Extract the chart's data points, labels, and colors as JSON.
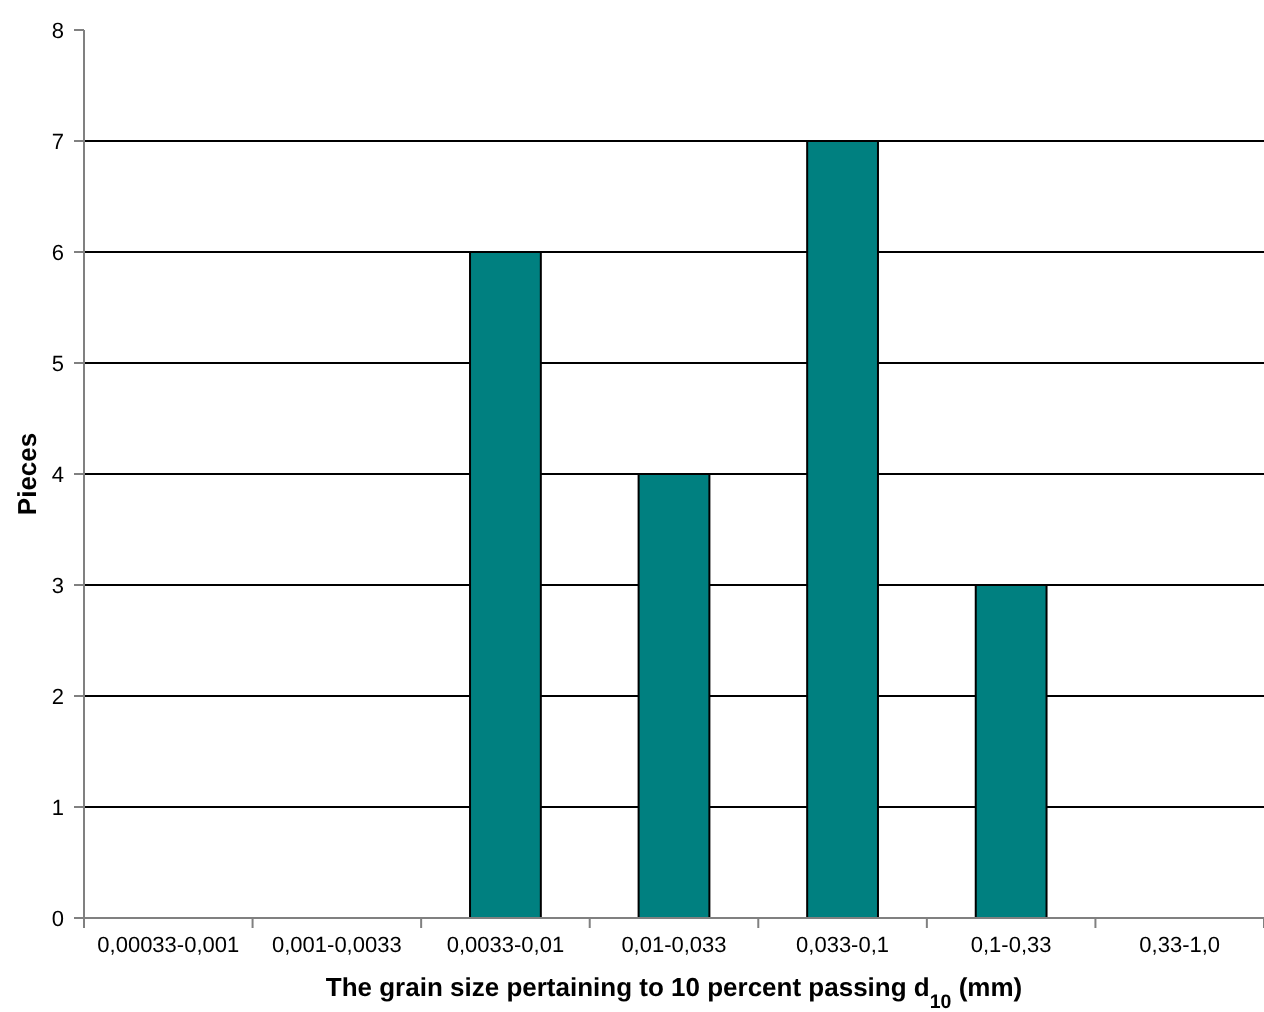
{
  "chart_data": {
    "type": "bar",
    "xlabel": "The grain size pertaining to 10 percent passing d$_{10}$ (mm)",
    "ylabel": "Pieces",
    "categories": [
      "0,00033-0,001",
      "0,001-0,0033",
      "0,0033-0,01",
      "0,01-0,033",
      "0,033-0,1",
      "0,1-0,33",
      "0,33-1,0"
    ],
    "values": [
      0,
      0,
      6,
      4,
      7,
      3,
      0
    ],
    "color": "#008080",
    "ylim": [
      0,
      8
    ],
    "yticks": [
      0,
      1,
      2,
      3,
      4,
      5,
      6,
      7,
      8
    ],
    "grid": "y"
  }
}
